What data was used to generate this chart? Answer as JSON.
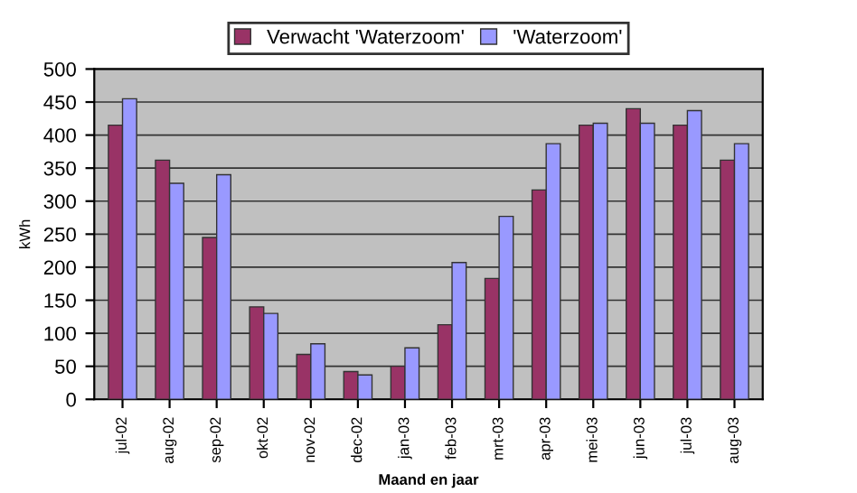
{
  "chart_data": {
    "type": "bar",
    "xlabel": "Maand en jaar",
    "ylabel": "kWh",
    "categories": [
      "jul-02",
      "aug-02",
      "sep-02",
      "okt-02",
      "nov-02",
      "dec-02",
      "jan-03",
      "feb-03",
      "mrt-03",
      "apr-03",
      "mei-03",
      "jun-03",
      "jul-03",
      "aug-03"
    ],
    "series": [
      {
        "name": "Verwacht 'Waterzoom'",
        "color": "#993366",
        "values": [
          415,
          362,
          245,
          140,
          68,
          42,
          50,
          113,
          183,
          317,
          415,
          440,
          415,
          362
        ]
      },
      {
        "name": "'Waterzoom'",
        "color": "#9999ff",
        "values": [
          455,
          327,
          340,
          130,
          84,
          37,
          78,
          207,
          277,
          387,
          418,
          418,
          437,
          387
        ]
      }
    ],
    "ylim": [
      0,
      500
    ],
    "yticks": [
      0,
      50,
      100,
      150,
      200,
      250,
      300,
      350,
      400,
      450,
      500
    ],
    "grid": "y",
    "legend": "top"
  }
}
